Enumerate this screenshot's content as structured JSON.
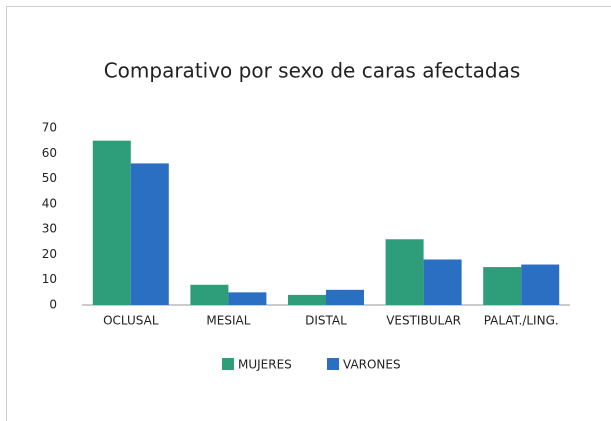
{
  "chart_data": {
    "type": "bar",
    "title": "Comparativo por sexo de caras afectadas",
    "categories": [
      "OCLUSAL",
      "MESIAL",
      "DISTAL",
      "VESTIBULAR",
      "PALAT./LING."
    ],
    "series": [
      {
        "name": "MUJERES",
        "color": "#2e9e7a",
        "values": [
          65,
          8,
          4,
          26,
          15
        ]
      },
      {
        "name": "VARONES",
        "color": "#2b6fc2",
        "values": [
          56,
          5,
          6,
          18,
          16
        ]
      }
    ],
    "ylim": [
      0,
      70
    ],
    "yticks": [
      0,
      10,
      20,
      30,
      40,
      50,
      60,
      70
    ],
    "grid": false,
    "legend": "bottom"
  }
}
